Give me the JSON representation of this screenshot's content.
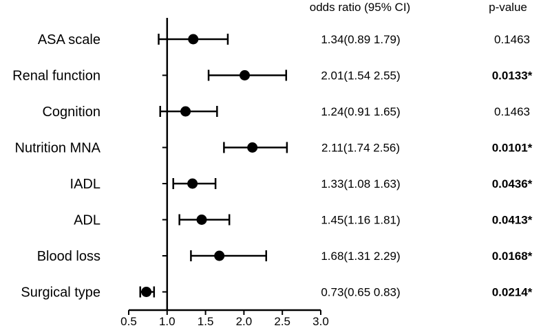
{
  "chart_data": {
    "type": "forest",
    "headers": {
      "ci": "odds ratio (95% CI)",
      "p": "p-value"
    },
    "xlim": [
      0.5,
      3.0
    ],
    "xticks": [
      0.5,
      1.0,
      1.5,
      2.0,
      2.5,
      3.0
    ],
    "xtick_labels": [
      "0.5",
      "1.0",
      "1.5",
      "2.0",
      "2.5",
      "3.0"
    ],
    "reference_line": 1.0,
    "rows": [
      {
        "label": "ASA scale",
        "or": 1.34,
        "lo": 0.89,
        "hi": 1.79,
        "ci_text": "1.34(0.89 1.79)",
        "p": "0.1463",
        "significant": false
      },
      {
        "label": "Renal function",
        "or": 2.01,
        "lo": 1.54,
        "hi": 2.55,
        "ci_text": "2.01(1.54 2.55)",
        "p": "0.0133*",
        "significant": true
      },
      {
        "label": "Cognition",
        "or": 1.24,
        "lo": 0.91,
        "hi": 1.65,
        "ci_text": "1.24(0.91 1.65)",
        "p": "0.1463",
        "significant": false
      },
      {
        "label": "Nutrition MNA",
        "or": 2.11,
        "lo": 1.74,
        "hi": 2.56,
        "ci_text": "2.11(1.74 2.56)",
        "p": "0.0101*",
        "significant": true
      },
      {
        "label": "IADL",
        "or": 1.33,
        "lo": 1.08,
        "hi": 1.63,
        "ci_text": "1.33(1.08 1.63)",
        "p": "0.0436*",
        "significant": true
      },
      {
        "label": "ADL",
        "or": 1.45,
        "lo": 1.16,
        "hi": 1.81,
        "ci_text": "1.45(1.16 1.81)",
        "p": "0.0413*",
        "significant": true
      },
      {
        "label": "Blood loss",
        "or": 1.68,
        "lo": 1.31,
        "hi": 2.29,
        "ci_text": "1.68(1.31 2.29)",
        "p": "0.0168*",
        "significant": true
      },
      {
        "label": "Surgical type",
        "or": 0.73,
        "lo": 0.65,
        "hi": 0.83,
        "ci_text": "0.73(0.65 0.83)",
        "p": "0.0214*",
        "significant": true
      }
    ],
    "colors": {
      "marker": "#000000",
      "axis": "#000000"
    }
  }
}
